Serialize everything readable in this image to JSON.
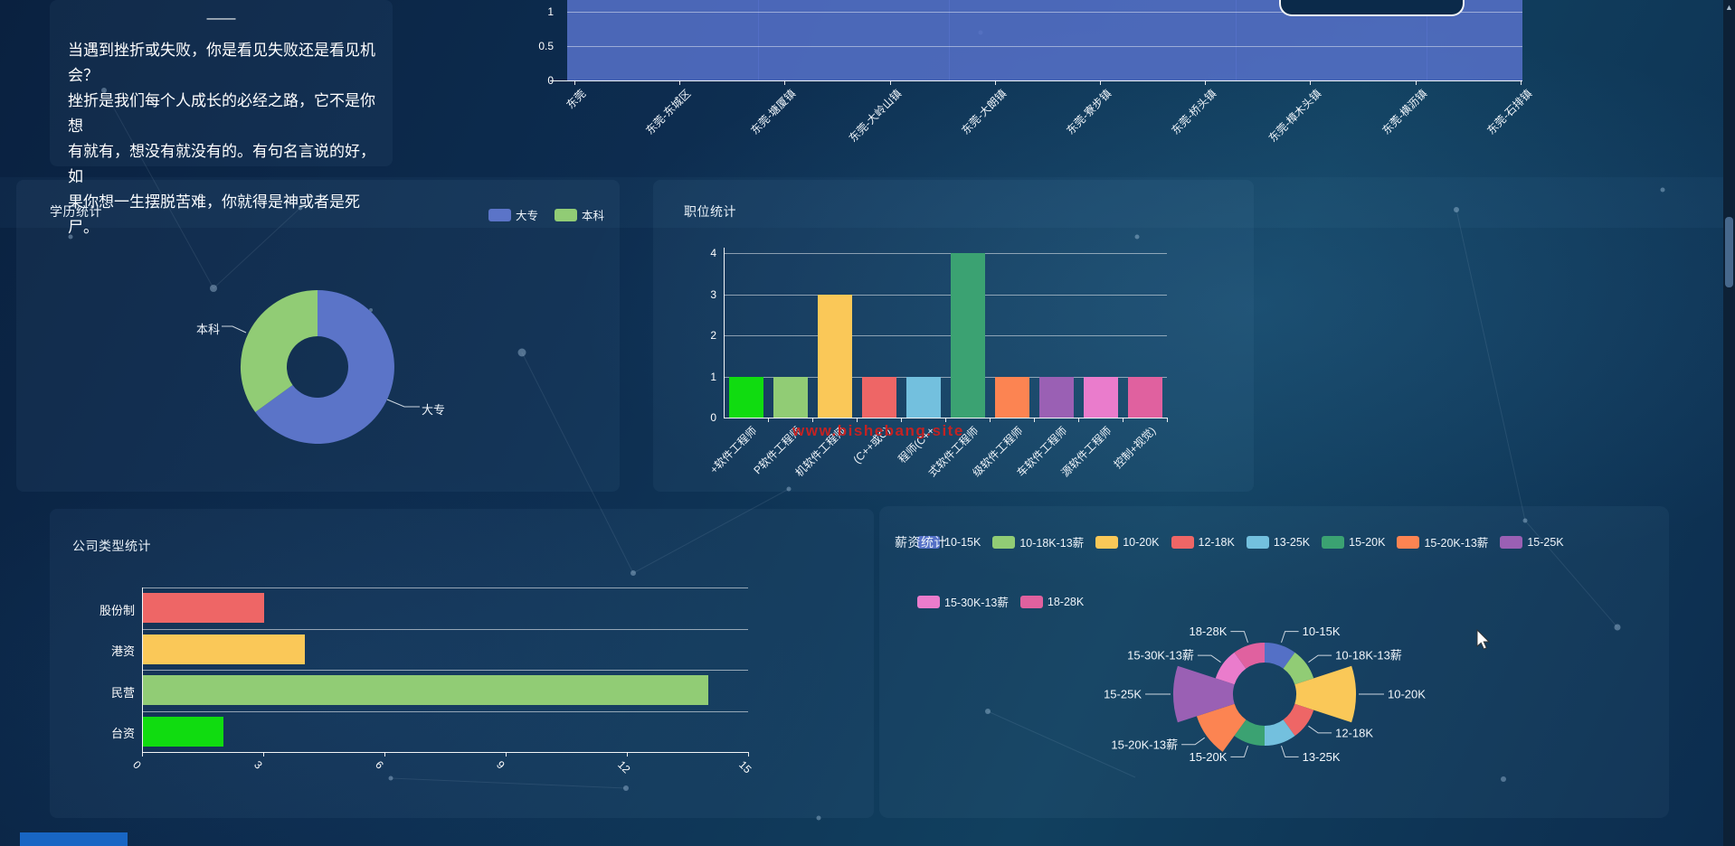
{
  "watermark": "www.bishebang.site",
  "page": {
    "scrollbar_up_icon": "▲"
  },
  "quote": {
    "dash": "——",
    "lines": [
      "当遇到挫折或失败，你是看见失败还是看见机会？",
      "挫折是我们每个人成长的必经之路，它不是你想",
      "有就有，想没有就没有的。有句名言说的好，如",
      "果你想一生摆脱苦难，你就得是神或者是死尸。"
    ]
  },
  "chart_data": [
    {
      "id": "region-bar",
      "type": "bar",
      "title": "",
      "categories": [
        "东莞",
        "东莞-东城区",
        "东莞-塘厦镇",
        "东莞-大岭山镇",
        "东莞-大朗镇",
        "东莞-寮步镇",
        "东莞-桥头镇",
        "东莞-樟木头镇",
        "东莞-横沥镇",
        "东莞-石排镇"
      ],
      "values": [
        1,
        1,
        1,
        1,
        1,
        1,
        1,
        1,
        1,
        1
      ],
      "yticks": [
        "1",
        "0.5",
        "0"
      ],
      "ylim": [
        0,
        1
      ],
      "bar_color": "#5470c6",
      "layout_hint": "plot area clipped at top of viewport; bars merge into one block"
    },
    {
      "id": "education-donut",
      "type": "pie",
      "title": "学历统计",
      "legend_position": "top-right",
      "slices": [
        {
          "label": "大专",
          "value": 13,
          "color": "#5b74c8"
        },
        {
          "label": "本科",
          "value": 7,
          "color": "#91cc75"
        }
      ]
    },
    {
      "id": "position-bar",
      "type": "bar",
      "title": "职位统计",
      "yticks": [
        "0",
        "1",
        "2",
        "3",
        "4"
      ],
      "ylim": [
        0,
        4
      ],
      "categories": [
        "+软件工程师",
        "P软件工程师",
        "机软件工程师",
        "(C++或C)",
        "程师(C++",
        "式软件工程师",
        "级软件工程师",
        "车软件工程师",
        "源软件工程师",
        "控制+视觉)"
      ],
      "values": [
        1,
        1,
        3,
        1,
        1,
        4,
        1,
        1,
        1,
        1
      ],
      "colors": [
        "#10dc10",
        "#91cc75",
        "#fac858",
        "#ee6666",
        "#73c0de",
        "#3ba272",
        "#fc8452",
        "#9a60b4",
        "#ea7ccc",
        "#e0619f"
      ]
    },
    {
      "id": "company-hbar",
      "type": "bar",
      "orientation": "horizontal",
      "title": "公司类型统计",
      "categories": [
        "股份制",
        "港资",
        "民营",
        "台资"
      ],
      "values": [
        3,
        4,
        14,
        2
      ],
      "colors": [
        "#ee6666",
        "#fac858",
        "#91cc75",
        "#10dc10"
      ],
      "xticks": [
        "0",
        "3",
        "6",
        "9",
        "12",
        "15"
      ],
      "xlim": [
        0,
        15
      ]
    },
    {
      "id": "salary-rose",
      "type": "pie",
      "subtype": "rose",
      "title": "薪资统计",
      "legend_position": "top",
      "slices": [
        {
          "label": "10-15K",
          "value": 1,
          "color": "#5470c6"
        },
        {
          "label": "10-18K-13薪",
          "value": 1,
          "color": "#91cc75"
        },
        {
          "label": "10-20K",
          "value": 3,
          "color": "#fac858"
        },
        {
          "label": "12-18K",
          "value": 1,
          "color": "#ee6666"
        },
        {
          "label": "13-25K",
          "value": 1,
          "color": "#73c0de"
        },
        {
          "label": "15-20K",
          "value": 1,
          "color": "#3ba272"
        },
        {
          "label": "15-20K-13薪",
          "value": 2,
          "color": "#fc8452"
        },
        {
          "label": "15-25K",
          "value": 3,
          "color": "#9a60b4"
        },
        {
          "label": "15-30K-13薪",
          "value": 1,
          "color": "#ea7ccc"
        },
        {
          "label": "18-28K",
          "value": 1,
          "color": "#e0619f"
        }
      ]
    }
  ]
}
